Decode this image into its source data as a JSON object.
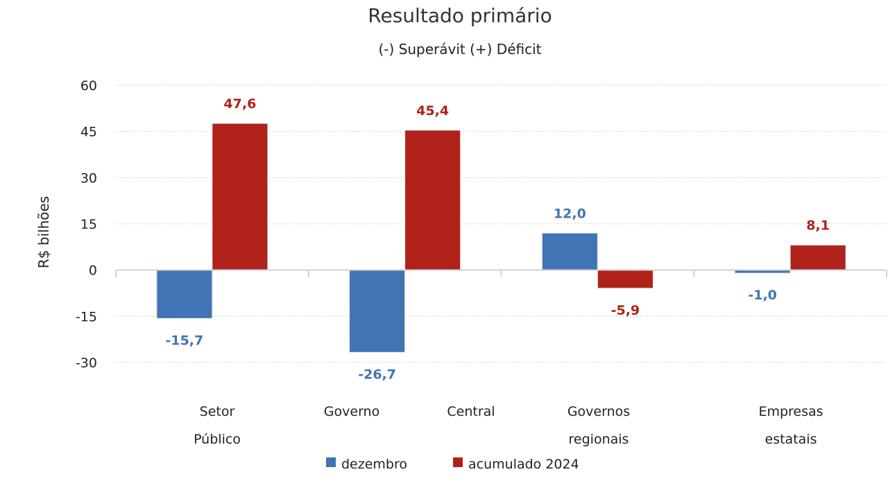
{
  "chart_data": {
    "type": "bar",
    "title": "Resultado primário",
    "subtitle": "(-) Superávit  (+) Déficit",
    "xlabel": "",
    "ylabel": "R$ bilhões",
    "ylim": [
      -30,
      60
    ],
    "yticks": [
      60,
      45,
      30,
      15,
      0,
      -15,
      -30
    ],
    "grid": true,
    "legend_position": "bottom",
    "categories": [
      [
        "Setor",
        "Público"
      ],
      [
        "Governo",
        "Central"
      ],
      [
        "Governos",
        "regionais"
      ],
      [
        "Empresas",
        "estatais"
      ]
    ],
    "series": [
      {
        "name": "dezembro",
        "color": "#4273b5",
        "values": [
          -15.7,
          -26.7,
          12.0,
          -1.0
        ],
        "labels": [
          "-15,7",
          "-26,7",
          "12,0",
          "-1,0"
        ]
      },
      {
        "name": "acumulado 2024",
        "color": "#b0211a",
        "values": [
          47.6,
          45.4,
          -5.9,
          8.1
        ],
        "labels": [
          "47,6",
          "45,4",
          "-5,9",
          "8,1"
        ]
      }
    ]
  }
}
